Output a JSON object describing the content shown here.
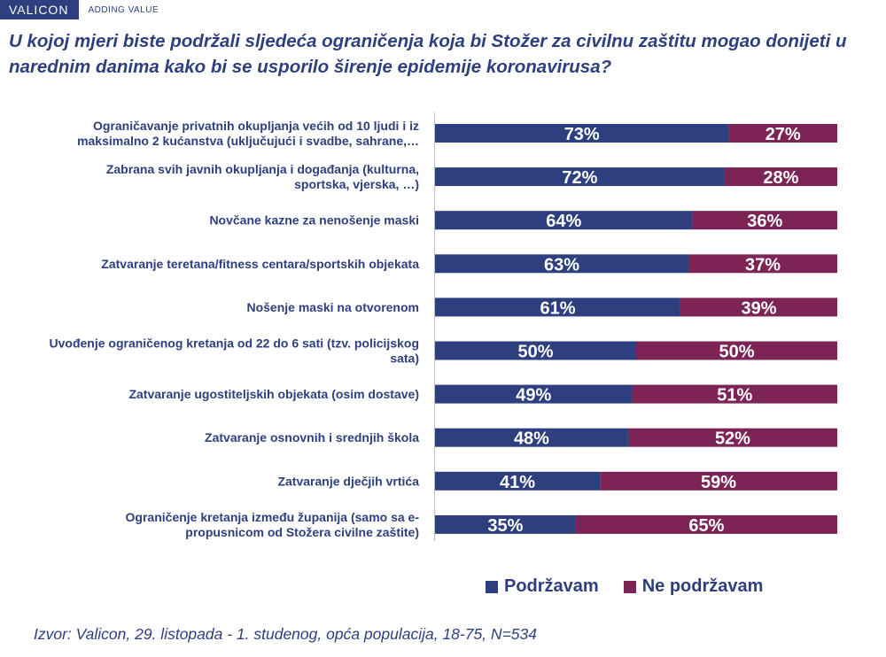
{
  "brand": {
    "name": "VALICON",
    "tagline": "ADDING VALUE"
  },
  "title": "U kojoj mjeri biste podržali sljedeća ograničenja koja bi Stožer za civilnu zaštitu mogao donijeti u narednim danima kako bi se usporilo širenje epidemije koronavirusa?",
  "source": "Izvor: Valicon, 29. listopada - 1. studenog, opća populacija, 18-75, N=534",
  "colors": {
    "support": "#2e3f7f",
    "oppose": "#7d2457",
    "text": "#2e3f7f"
  },
  "legend": [
    {
      "label": "Podržavam",
      "color": "#2e3f7f"
    },
    {
      "label": "Ne podržavam",
      "color": "#7d2457"
    }
  ],
  "chart_data": {
    "type": "bar",
    "orientation": "horizontal",
    "stacked": "100%",
    "categories": [
      [
        "Ograničavanje privatnih okupljanja većih od 10 ljudi i iz",
        "maksimalno 2 kućanstva (uključujući i svadbe, sahrane,…"
      ],
      [
        "Zabrana svih javnih okupljanja i događanja (kulturna,",
        "sportska, vjerska, …)"
      ],
      [
        "Novčane kazne za nenošenje maski"
      ],
      [
        "Zatvaranje teretana/fitness centara/sportskih objekata"
      ],
      [
        "Nošenje maski na otvorenom"
      ],
      [
        "Uvođenje ograničenog kretanja od 22 do 6 sati (tzv. policijskog",
        "sata)"
      ],
      [
        "Zatvaranje ugostiteljskih objekata (osim dostave)"
      ],
      [
        "Zatvaranje osnovnih i srednjih škola"
      ],
      [
        "Zatvaranje dječjih vrtića"
      ],
      [
        "Ograničenje kretanja između županija (samo sa e-",
        "propusnicom od Stožera civilne zaštite)"
      ]
    ],
    "series": [
      {
        "name": "Podržavam",
        "values": [
          73,
          72,
          64,
          63,
          61,
          50,
          49,
          48,
          41,
          35
        ],
        "labels": [
          "73%",
          "72%",
          "64%",
          "63%",
          "61%",
          "50%",
          "49%",
          "48%",
          "41%",
          "35%"
        ]
      },
      {
        "name": "Ne podržavam",
        "values": [
          27,
          28,
          36,
          37,
          39,
          50,
          51,
          52,
          59,
          65
        ],
        "labels": [
          "27%",
          "28%",
          "36%",
          "37%",
          "39%",
          "50%",
          "51%",
          "52%",
          "59%",
          "65%"
        ]
      }
    ],
    "xlim": [
      0,
      100
    ],
    "legend_position": "bottom-right",
    "grid": false
  }
}
